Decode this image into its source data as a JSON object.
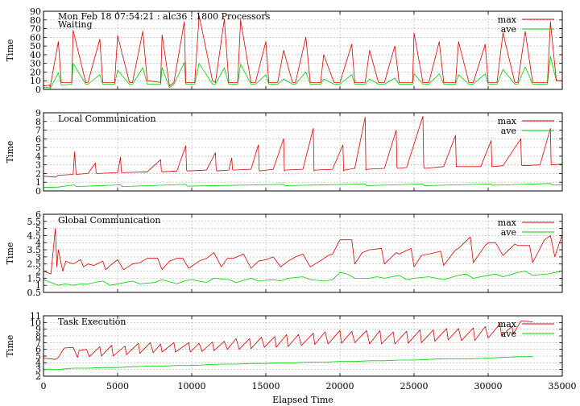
{
  "figure": {
    "header": "Mon Feb 18 07:54:21 : alc36 : 1800 Processors",
    "xlabel": "Elapsed Time",
    "xlim": [
      0,
      35000
    ],
    "xticks": [
      0,
      5000,
      10000,
      15000,
      20000,
      25000,
      30000,
      35000
    ]
  },
  "colors": {
    "max": "#e00000",
    "ave": "#00d000",
    "grid": "#999999"
  },
  "chart_data": [
    {
      "type": "line",
      "title": "Waiting",
      "ylabel": "Time",
      "ylim": [
        0,
        90
      ],
      "yticks": [
        0,
        10,
        20,
        30,
        40,
        50,
        60,
        70,
        80,
        90
      ],
      "grid": true,
      "legend": "top-right",
      "series": [
        {
          "name": "max",
          "x": [
            0,
            400,
            450,
            1000,
            1200,
            1900,
            2000,
            2850,
            3000,
            3800,
            4000,
            4800,
            5000,
            5800,
            6000,
            6700,
            7000,
            7900,
            8000,
            8500,
            8800,
            9500,
            9600,
            10200,
            10500,
            11400,
            11600,
            12200,
            12500,
            13100,
            13300,
            14000,
            14300,
            15000,
            15200,
            15800,
            16200,
            16800,
            17000,
            17700,
            18000,
            18700,
            18900,
            19600,
            20000,
            20800,
            21000,
            21700,
            22000,
            22600,
            23000,
            23700,
            24000,
            24900,
            25000,
            25600,
            26000,
            26700,
            27000,
            27800,
            28000,
            28700,
            29000,
            29800,
            30000,
            30600,
            31000,
            31800,
            32000,
            32500,
            33000,
            34000,
            34200,
            34600,
            35000
          ],
          "y": [
            4,
            5,
            3,
            55,
            8,
            8,
            68,
            8,
            8,
            58,
            8,
            8,
            62,
            8,
            8,
            67,
            10,
            8,
            63,
            4,
            8,
            78,
            8,
            8,
            85,
            10,
            8,
            81,
            8,
            8,
            80,
            8,
            8,
            55,
            8,
            8,
            45,
            8,
            8,
            60,
            8,
            8,
            40,
            8,
            8,
            52,
            8,
            8,
            45,
            8,
            8,
            50,
            8,
            8,
            65,
            8,
            8,
            55,
            8,
            8,
            55,
            8,
            8,
            52,
            8,
            8,
            65,
            8,
            8,
            67,
            8,
            8,
            78,
            10,
            10
          ]
        },
        {
          "name": "ave",
          "x": [
            0,
            400,
            450,
            1000,
            1200,
            1900,
            2000,
            2850,
            3000,
            3800,
            4000,
            4800,
            5000,
            5800,
            6000,
            6700,
            7000,
            7900,
            8000,
            8500,
            8800,
            9500,
            9600,
            10200,
            10500,
            11400,
            11600,
            12200,
            12500,
            13100,
            13300,
            14000,
            14300,
            15000,
            15200,
            15800,
            16200,
            16800,
            17000,
            17700,
            18000,
            18700,
            18900,
            19600,
            20000,
            20800,
            21000,
            21700,
            22000,
            22600,
            23000,
            23700,
            24000,
            24900,
            25000,
            25600,
            26000,
            26700,
            27000,
            27800,
            28000,
            28700,
            29000,
            29800,
            30000,
            30600,
            31000,
            31800,
            32000,
            32500,
            33000,
            34000,
            34200,
            34600,
            35000
          ],
          "y": [
            2,
            2,
            1,
            19,
            5,
            6,
            30,
            6,
            6,
            17,
            6,
            6,
            22,
            6,
            6,
            25,
            6,
            6,
            25,
            2,
            6,
            31,
            6,
            6,
            30,
            6,
            6,
            25,
            6,
            6,
            29,
            6,
            6,
            17,
            6,
            6,
            12,
            6,
            6,
            20,
            6,
            6,
            12,
            6,
            6,
            17,
            6,
            6,
            12,
            6,
            6,
            13,
            6,
            6,
            18,
            6,
            6,
            18,
            6,
            6,
            17,
            6,
            6,
            18,
            6,
            6,
            23,
            6,
            6,
            26,
            6,
            6,
            38,
            10,
            10
          ]
        }
      ]
    },
    {
      "type": "line",
      "title": "Local Communication",
      "ylabel": "Time",
      "ylim": [
        0,
        9
      ],
      "yticks": [
        0,
        1,
        2,
        3,
        4,
        5,
        6,
        7,
        8,
        9
      ],
      "grid": true,
      "legend": "top-right",
      "series": [
        {
          "name": "max",
          "x": [
            0,
            800,
            1000,
            2000,
            2100,
            2200,
            3000,
            3500,
            3550,
            3600,
            5000,
            5200,
            5250,
            5300,
            7000,
            7900,
            7950,
            8000,
            9000,
            9600,
            9650,
            9700,
            11000,
            11600,
            11650,
            11700,
            12500,
            12700,
            12750,
            12800,
            14000,
            14500,
            14550,
            14600,
            15500,
            16200,
            16250,
            16300,
            17500,
            18200,
            18250,
            18300,
            19500,
            20200,
            20250,
            20300,
            21000,
            21700,
            21750,
            21800,
            23000,
            23800,
            23850,
            23900,
            24500,
            25600,
            25650,
            25700,
            27000,
            27800,
            27850,
            27900,
            29500,
            30200,
            30250,
            30300,
            31000,
            32200,
            32250,
            32300,
            33500,
            34200,
            34250,
            34300,
            35000
          ],
          "y": [
            1.7,
            1.6,
            1.8,
            1.9,
            4.5,
            1.9,
            2.0,
            3.2,
            2.1,
            2.0,
            2.1,
            3.9,
            2.2,
            2.1,
            2.2,
            3.6,
            2.3,
            2.2,
            2.3,
            5.2,
            2.4,
            2.3,
            2.4,
            4.4,
            2.4,
            2.3,
            2.4,
            3.8,
            2.5,
            2.4,
            2.5,
            5.3,
            2.4,
            2.3,
            2.5,
            6.0,
            2.3,
            2.4,
            2.5,
            7.2,
            2.3,
            2.4,
            2.5,
            5.3,
            2.3,
            2.4,
            2.6,
            8.5,
            2.4,
            2.5,
            2.6,
            7.0,
            2.7,
            2.6,
            2.7,
            8.6,
            2.8,
            2.6,
            2.8,
            6.4,
            2.8,
            2.8,
            2.8,
            5.8,
            2.8,
            2.8,
            2.9,
            6.0,
            3.0,
            2.9,
            3.0,
            7.2,
            3.0,
            3.0,
            3.1
          ]
        },
        {
          "name": "ave",
          "x": [
            0,
            1000,
            2100,
            2200,
            5200,
            5300,
            9600,
            9700,
            16200,
            16300,
            21700,
            21800,
            25600,
            25700,
            30200,
            30300,
            34200,
            34300,
            35000
          ],
          "y": [
            0.4,
            0.45,
            0.7,
            0.5,
            0.7,
            0.5,
            0.75,
            0.55,
            0.75,
            0.6,
            0.8,
            0.6,
            0.8,
            0.6,
            0.8,
            0.65,
            0.85,
            0.7,
            0.7
          ]
        }
      ]
    },
    {
      "type": "line",
      "title": "Global Communication",
      "ylabel": "Time",
      "ylim": [
        0.5,
        6
      ],
      "yticks": [
        0.5,
        1,
        1.5,
        2,
        2.5,
        3,
        3.5,
        4,
        4.5,
        5,
        5.5,
        6
      ],
      "grid": true,
      "legend": "top-right",
      "series": [
        {
          "name": "max",
          "x": [
            0,
            500,
            800,
            900,
            1000,
            1300,
            1500,
            2000,
            2500,
            2700,
            3000,
            3400,
            4000,
            4200,
            4500,
            5000,
            5400,
            6000,
            6500,
            7000,
            7700,
            8000,
            8500,
            9000,
            9400,
            9800,
            10500,
            11000,
            11500,
            12000,
            12400,
            12800,
            13500,
            14000,
            14500,
            15000,
            15500,
            16000,
            16500,
            17000,
            17500,
            18000,
            18800,
            19200,
            19500,
            20000,
            20800,
            21000,
            21500,
            22000,
            22800,
            23000,
            23800,
            24000,
            24800,
            25000,
            25500,
            26000,
            26800,
            27000,
            27800,
            28000,
            28800,
            29000,
            29800,
            30000,
            30500,
            31000,
            31800,
            32000,
            32800,
            33000,
            33800,
            34200,
            34500,
            35000
          ],
          "y": [
            2.0,
            1.8,
            5.0,
            2.3,
            3.5,
            2.0,
            2.7,
            2.5,
            2.8,
            2.3,
            2.5,
            2.4,
            2.7,
            2.1,
            2.4,
            2.8,
            2.1,
            2.5,
            2.6,
            2.9,
            2.9,
            2.1,
            2.7,
            2.9,
            2.9,
            2.2,
            2.7,
            2.9,
            3.3,
            2.3,
            2.9,
            2.9,
            3.2,
            2.2,
            2.7,
            2.8,
            3.0,
            2.3,
            2.7,
            3.0,
            3.2,
            2.3,
            2.8,
            3.1,
            3.2,
            4.2,
            4.2,
            2.5,
            3.3,
            3.5,
            3.6,
            2.5,
            3.3,
            3.2,
            3.6,
            2.3,
            3.1,
            3.2,
            3.4,
            2.4,
            3.5,
            3.6,
            4.4,
            2.6,
            3.8,
            4.0,
            4.0,
            3.1,
            3.9,
            3.8,
            3.8,
            2.6,
            4.2,
            4.5,
            3.0,
            4.6
          ]
        },
        {
          "name": "ave",
          "x": [
            0,
            500,
            1000,
            1500,
            2000,
            2500,
            3000,
            4000,
            4500,
            5500,
            6000,
            6500,
            7500,
            8000,
            9000,
            9500,
            10000,
            11000,
            11500,
            12500,
            13000,
            14000,
            14500,
            15500,
            16000,
            16500,
            17500,
            18000,
            19000,
            19500,
            20000,
            20500,
            21000,
            22000,
            22500,
            23000,
            24000,
            24500,
            25000,
            26000,
            26500,
            27000,
            28000,
            28500,
            29000,
            30000,
            30500,
            31000,
            32000,
            32500,
            33000,
            34000,
            34500,
            35000
          ],
          "y": [
            1.4,
            1.2,
            1.0,
            1.1,
            1.0,
            1.1,
            1.1,
            1.3,
            1.0,
            1.2,
            1.3,
            1.1,
            1.2,
            1.4,
            1.1,
            1.3,
            1.4,
            1.2,
            1.5,
            1.4,
            1.2,
            1.5,
            1.3,
            1.4,
            1.3,
            1.5,
            1.6,
            1.4,
            1.3,
            1.4,
            1.9,
            1.8,
            1.5,
            1.5,
            1.6,
            1.5,
            1.7,
            1.4,
            1.5,
            1.6,
            1.5,
            1.4,
            1.7,
            1.8,
            1.5,
            1.7,
            1.8,
            1.6,
            1.9,
            2.0,
            1.7,
            1.8,
            1.9,
            2.0
          ]
        }
      ]
    },
    {
      "type": "line",
      "title": "Task Execution",
      "ylabel": "Time",
      "ylim": [
        2,
        11
      ],
      "yticks": [
        2,
        3,
        4,
        5,
        6,
        7,
        8,
        9,
        10,
        11
      ],
      "grid": true,
      "legend": "top-right",
      "series": [
        {
          "name": "max",
          "x": [
            0,
            800,
            1000,
            1400,
            2000,
            2300,
            2400,
            2900,
            3100,
            3800,
            3900,
            4600,
            4700,
            5500,
            5600,
            6400,
            6500,
            7200,
            7400,
            7900,
            8000,
            8800,
            8900,
            9800,
            9900,
            10500,
            10700,
            11400,
            11500,
            12200,
            12400,
            13000,
            13200,
            13900,
            14000,
            14700,
            14900,
            15600,
            15700,
            16400,
            16500,
            17200,
            17400,
            18200,
            18300,
            19000,
            19200,
            20000,
            20100,
            20800,
            21000,
            21800,
            22000,
            22700,
            22800,
            23600,
            23700,
            24500,
            24600,
            25400,
            25500,
            26300,
            26400,
            27200,
            27300,
            28000,
            28200,
            29000,
            29100,
            29800,
            30000,
            30800,
            30900,
            31600,
            31700,
            32200,
            32400,
            33000
          ],
          "y": [
            4.7,
            4.5,
            4.8,
            6.2,
            6.3,
            4.8,
            5.8,
            6.0,
            4.9,
            6.4,
            5.0,
            6.6,
            5.0,
            6.5,
            5.2,
            6.9,
            5.4,
            7.0,
            5.5,
            6.8,
            5.6,
            7.0,
            5.6,
            7.0,
            5.6,
            6.9,
            5.7,
            7.1,
            5.8,
            7.2,
            6.0,
            7.6,
            6.0,
            7.6,
            6.1,
            7.8,
            6.3,
            7.9,
            6.3,
            8.2,
            6.4,
            8.2,
            6.6,
            8.4,
            6.7,
            8.6,
            6.8,
            8.8,
            6.9,
            8.7,
            7.0,
            8.8,
            6.8,
            8.8,
            6.8,
            8.6,
            6.8,
            8.7,
            6.9,
            8.9,
            7.0,
            8.9,
            7.2,
            9.1,
            7.4,
            9.1,
            7.3,
            9.2,
            7.3,
            9.4,
            7.7,
            9.8,
            8.0,
            9.4,
            8.3,
            10.2,
            10.2,
            10.1
          ]
        },
        {
          "name": "ave",
          "x": [
            0,
            1000,
            2000,
            3000,
            4000,
            5000,
            6000,
            7000,
            8000,
            9000,
            10000,
            11000,
            12000,
            13000,
            14000,
            15000,
            16000,
            17000,
            18000,
            19000,
            20000,
            21000,
            22000,
            23000,
            24000,
            25000,
            26000,
            27000,
            28000,
            29000,
            30000,
            31000,
            32000,
            33000
          ],
          "y": [
            3.0,
            3.0,
            3.2,
            3.2,
            3.3,
            3.3,
            3.4,
            3.5,
            3.5,
            3.6,
            3.6,
            3.7,
            3.8,
            3.8,
            3.9,
            3.9,
            4.0,
            4.0,
            4.1,
            4.1,
            4.2,
            4.2,
            4.3,
            4.3,
            4.4,
            4.4,
            4.5,
            4.6,
            4.6,
            4.6,
            4.7,
            4.8,
            4.9,
            4.9
          ]
        }
      ]
    }
  ]
}
